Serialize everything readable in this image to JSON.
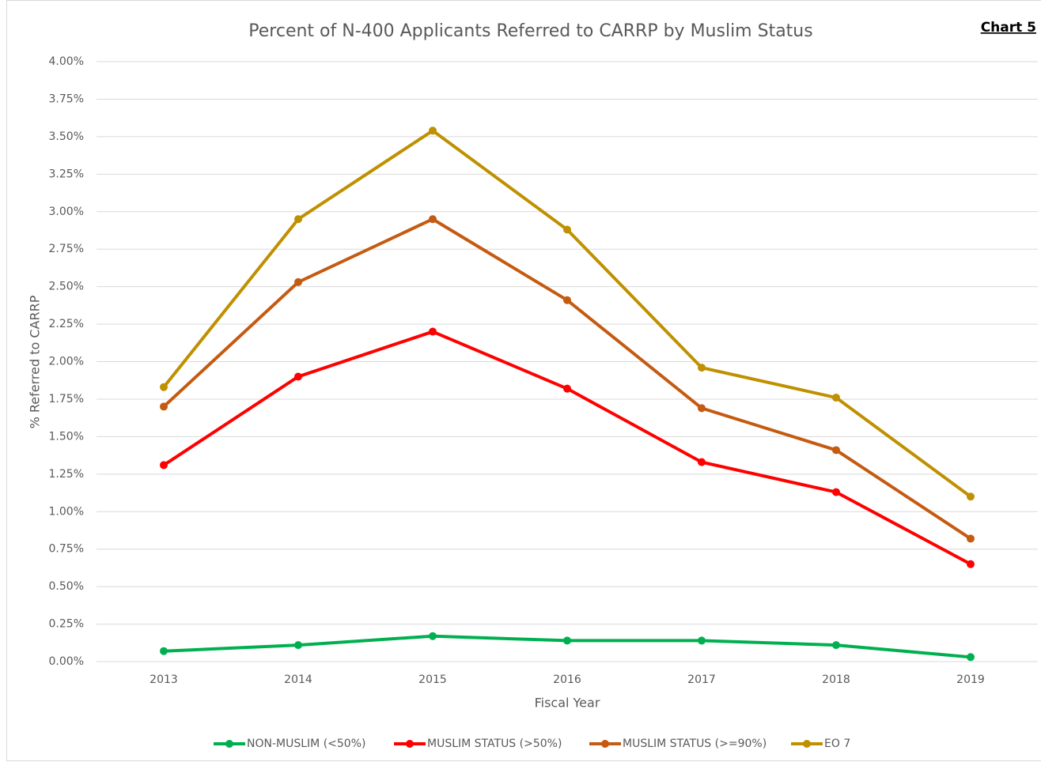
{
  "chart_data": {
    "type": "line",
    "title": "Percent of N-400 Applicants Referred to CARRP by Muslim Status",
    "annotation": "Chart 5",
    "x_label": "Fiscal Year",
    "y_label": "% Referred to CARRP",
    "categories": [
      "2013",
      "2014",
      "2015",
      "2016",
      "2017",
      "2018",
      "2019"
    ],
    "series": [
      {
        "name": "NON-MUSLIM (<50%)",
        "color": "#00b050",
        "values": [
          0.07,
          0.11,
          0.17,
          0.14,
          0.14,
          0.11,
          0.03
        ]
      },
      {
        "name": "MUSLIM STATUS (>50%)",
        "color": "#ff0000",
        "values": [
          1.31,
          1.9,
          2.2,
          1.82,
          1.33,
          1.13,
          0.65
        ]
      },
      {
        "name": "MUSLIM STATUS (>=90%)",
        "color": "#c55a11",
        "values": [
          1.7,
          2.53,
          2.95,
          2.41,
          1.69,
          1.41,
          0.82
        ]
      },
      {
        "name": "EO 7",
        "color": "#bf9000",
        "values": [
          1.83,
          2.95,
          3.54,
          2.88,
          1.96,
          1.76,
          1.1
        ]
      }
    ],
    "ylim": [
      0,
      4
    ],
    "yticks": [
      {
        "value": 0,
        "label": "0.00%"
      },
      {
        "value": 0.25,
        "label": "0.25%"
      },
      {
        "value": 0.5,
        "label": "0.50%"
      },
      {
        "value": 0.75,
        "label": "0.75%"
      },
      {
        "value": 1,
        "label": "1.00%"
      },
      {
        "value": 1.25,
        "label": "1.25%"
      },
      {
        "value": 1.5,
        "label": "1.50%"
      },
      {
        "value": 1.75,
        "label": "1.75%"
      },
      {
        "value": 2,
        "label": "2.00%"
      },
      {
        "value": 2.25,
        "label": "2.25%"
      },
      {
        "value": 2.5,
        "label": "2.50%"
      },
      {
        "value": 2.75,
        "label": "2.75%"
      },
      {
        "value": 3,
        "label": "3.00%"
      },
      {
        "value": 3.25,
        "label": "3.25%"
      },
      {
        "value": 3.5,
        "label": "3.50%"
      },
      {
        "value": 3.75,
        "label": "3.75%"
      },
      {
        "value": 4,
        "label": "4.00%"
      }
    ],
    "grid": true,
    "legend": "bottom"
  }
}
